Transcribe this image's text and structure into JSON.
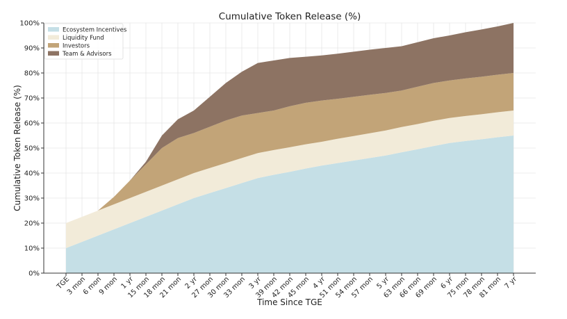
{
  "chart_data": {
    "type": "area",
    "stacked": true,
    "title": "Cumulative Token Release (%)",
    "xlabel": "Time Since TGE",
    "ylabel": "Cumulative Token Release (%)",
    "ylim": [
      0,
      100
    ],
    "y_ticks": [
      "0%",
      "10%",
      "20%",
      "30%",
      "40%",
      "50%",
      "60%",
      "70%",
      "80%",
      "90%",
      "100%"
    ],
    "grid": true,
    "legend_position": "top-left",
    "categories": [
      "TGE",
      "3 mon",
      "6 mon",
      "9 mon",
      "1 yr",
      "15 mon",
      "18 mon",
      "21 mon",
      "2 yr",
      "27 mon",
      "30 mon",
      "33 mon",
      "3 yr",
      "39 mon",
      "42 mon",
      "45 mon",
      "4 yr",
      "51 mon",
      "54 mon",
      "57 mon",
      "5 yr",
      "63 mon",
      "66 mon",
      "69 mon",
      "6 yr",
      "75 mon",
      "78 mon",
      "81 mon",
      "7 yr"
    ],
    "series": [
      {
        "name": "Ecosystem Incentives",
        "color": "#c5dfe6",
        "values": [
          10,
          12.5,
          15,
          17.5,
          20,
          22.5,
          25,
          27.5,
          30,
          32,
          34,
          36,
          38,
          39.3,
          40.5,
          41.8,
          43,
          44,
          45,
          46,
          47,
          48.3,
          49.5,
          50.8,
          52,
          52.8,
          53.5,
          54.3,
          55
        ]
      },
      {
        "name": "Liquidity Fund",
        "color": "#f2ebd9",
        "values": [
          10,
          10,
          10,
          10,
          10,
          10,
          10,
          10,
          10,
          10,
          10,
          10,
          10,
          9.9,
          9.8,
          9.7,
          9.5,
          9.7,
          9.8,
          9.9,
          10,
          10.1,
          10.1,
          10.1,
          10,
          10,
          10,
          10,
          10
        ]
      },
      {
        "name": "Investors",
        "color": "#c2a478",
        "values": [
          0,
          0,
          0,
          3,
          7,
          11,
          15,
          16.5,
          16,
          16.5,
          17,
          17,
          16,
          15.8,
          16.4,
          16.6,
          16.5,
          16,
          15.7,
          15.4,
          15,
          14.6,
          14.9,
          15.1,
          15,
          15,
          15,
          15,
          15
        ]
      },
      {
        "name": "Team & Advisors",
        "color": "#8d7363",
        "values": [
          0,
          0,
          0,
          0,
          0,
          1,
          5,
          7.5,
          9,
          12,
          15,
          17.5,
          20,
          20,
          19.3,
          18.4,
          18,
          18,
          18,
          18,
          18,
          17.7,
          17.8,
          17.9,
          18,
          18.5,
          18.9,
          19.3,
          20
        ]
      }
    ]
  }
}
